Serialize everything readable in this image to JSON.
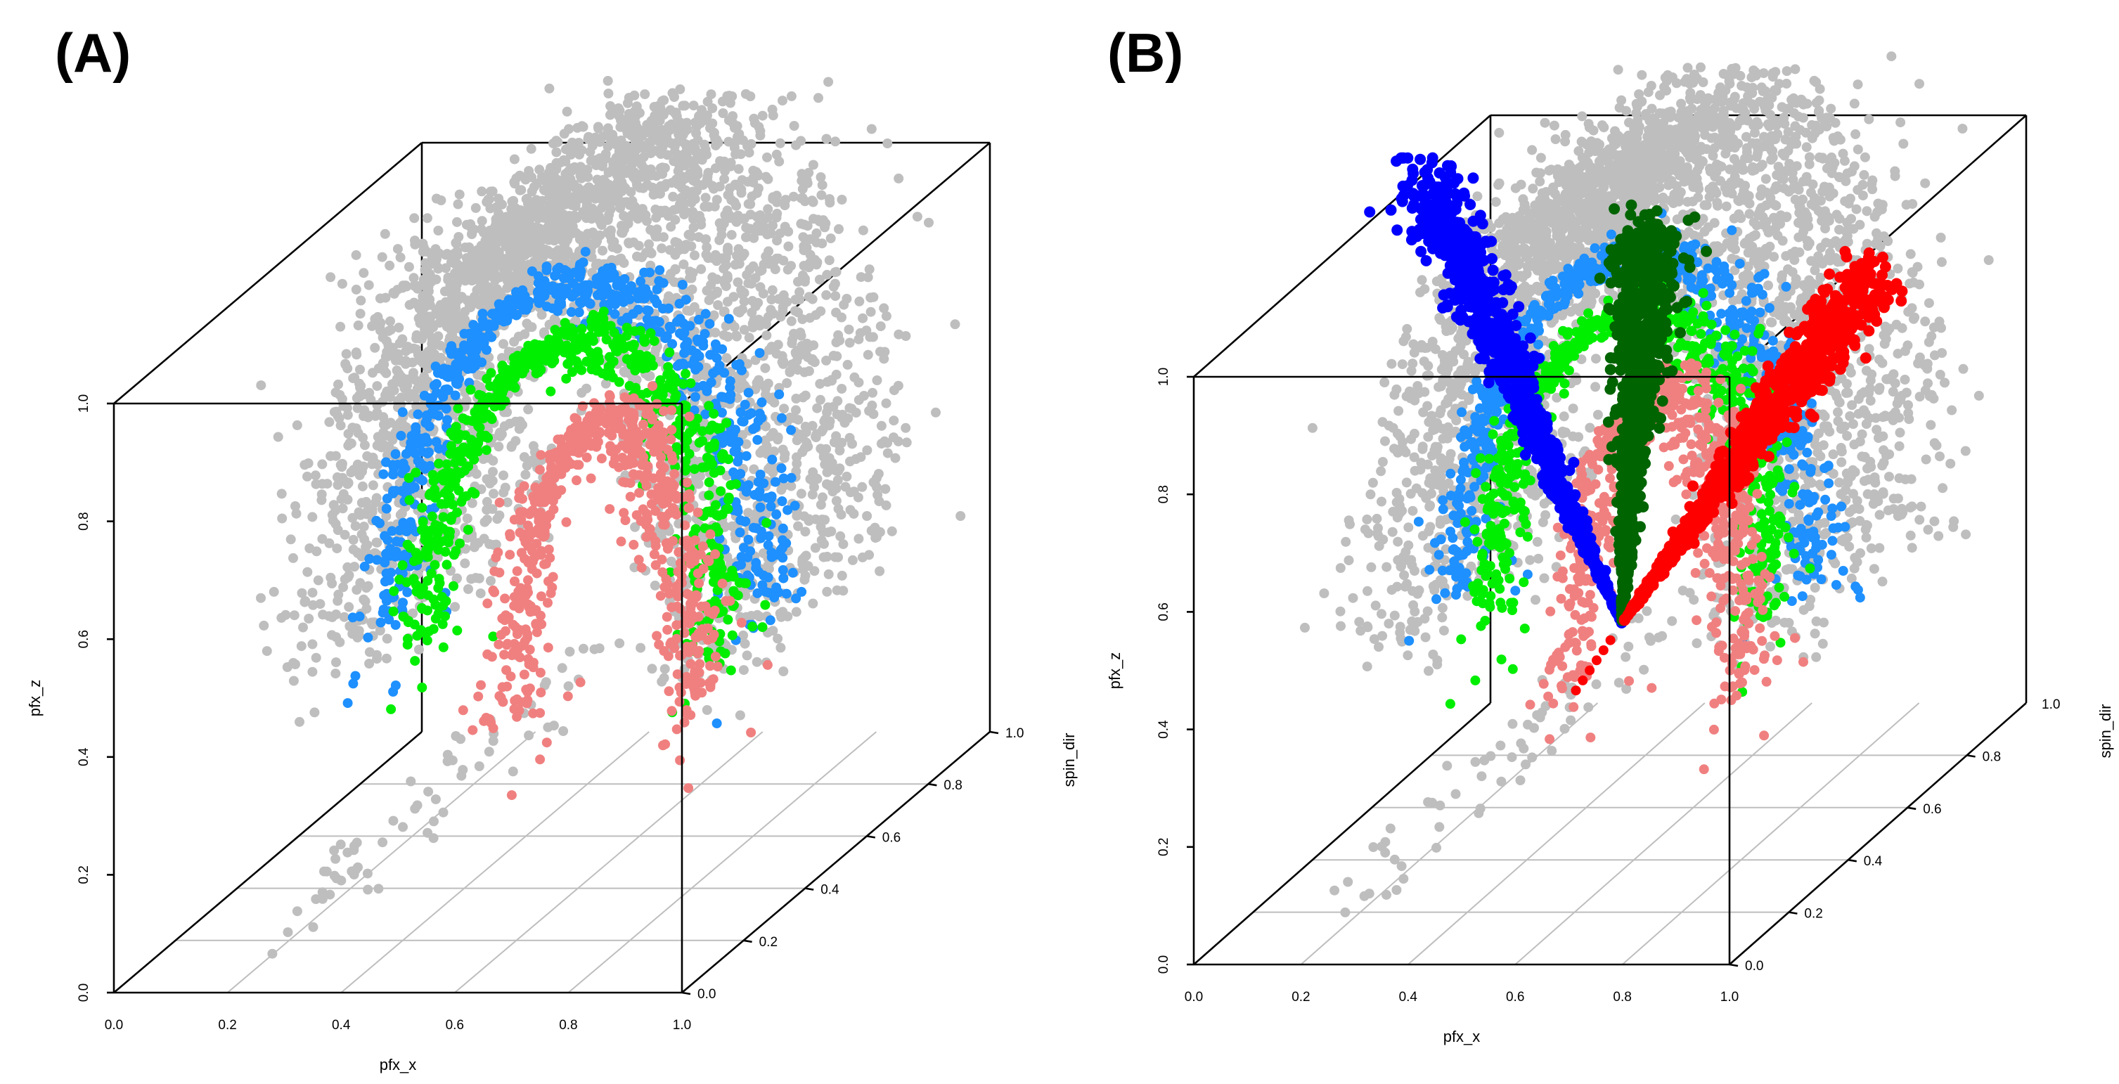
{
  "chart_data": [
    {
      "type": "scatter3d",
      "panel_label": "(A)",
      "xlabel": "pfx_x",
      "ylabel": "spin_dir",
      "zlabel": "pfx_z",
      "xlim": [
        0,
        1
      ],
      "ylim": [
        0,
        1
      ],
      "zlim": [
        0,
        1
      ],
      "x_ticks": [
        "0.0",
        "0.2",
        "0.4",
        "0.6",
        "0.8",
        "1.0"
      ],
      "y_ticks": [
        "0.0",
        "0.2",
        "0.4",
        "0.6",
        "0.8",
        "1.0"
      ],
      "z_ticks": [
        "0.0",
        "0.2",
        "0.4",
        "0.6",
        "0.8",
        "1.0"
      ],
      "grid": true,
      "colors": {
        "background_points": "#bebebe",
        "outer_arc": "#1e90ff",
        "middle_arc": "#00ee00",
        "inner_arc": "#f08080"
      },
      "series": [
        {
          "name": "all pitches",
          "color": "#bebebe",
          "shape": "horseshoe cloud",
          "x_center": 0.56,
          "y_range": [
            0.15,
            0.9
          ],
          "z_range": [
            0.15,
            1.12
          ],
          "approx_points": 3200
        },
        {
          "name": "outer arc",
          "color": "#1e90ff",
          "shape": "arc",
          "x_center": 0.55,
          "radius_x": 0.33,
          "z_top": 0.98,
          "z_bottom": 0.42,
          "y_mean": 0.5
        },
        {
          "name": "middle arc",
          "color": "#00ee00",
          "shape": "arc",
          "x_center": 0.55,
          "radius_x": 0.26,
          "z_top": 0.89,
          "z_bottom": 0.38,
          "y_mean": 0.48
        },
        {
          "name": "inner arc",
          "color": "#f08080",
          "shape": "arc",
          "x_center": 0.62,
          "radius_x": 0.16,
          "z_top": 0.77,
          "z_bottom": 0.27,
          "y_mean": 0.45
        }
      ]
    },
    {
      "type": "scatter3d",
      "panel_label": "(B)",
      "xlabel": "pfx_x",
      "ylabel": "spin_dir",
      "zlabel": "pfx_z",
      "xlim": [
        0,
        1
      ],
      "ylim": [
        0,
        1
      ],
      "zlim": [
        0,
        1
      ],
      "x_ticks": [
        "0.0",
        "0.2",
        "0.4",
        "0.6",
        "0.8",
        "1.0"
      ],
      "y_ticks": [
        "0.0",
        "0.2",
        "0.4",
        "0.6",
        "0.8"
      ],
      "y_axis_end_label": "1.0",
      "z_ticks": [
        "0.0",
        "0.2",
        "0.4",
        "0.6",
        "0.8",
        "1.0"
      ],
      "grid": true,
      "colors": {
        "background_points": "#bebebe",
        "outer_arc": "#1e90ff",
        "middle_arc": "#00ee00",
        "inner_arc": "#f08080",
        "fan_blue": "#0000ff",
        "fan_green": "#006400",
        "fan_red": "#ff0000"
      },
      "series": [
        {
          "name": "all pitches",
          "color": "#bebebe",
          "shape": "horseshoe cloud",
          "x_center": 0.56,
          "y_range": [
            0.15,
            0.9
          ],
          "z_range": [
            0.15,
            1.12
          ],
          "approx_points": 3200
        },
        {
          "name": "outer arc",
          "color": "#1e90ff",
          "shape": "arc",
          "x_center": 0.55,
          "radius_x": 0.33,
          "z_top": 0.98,
          "z_bottom": 0.42,
          "y_mean": 0.5
        },
        {
          "name": "middle arc",
          "color": "#00ee00",
          "shape": "arc",
          "x_center": 0.55,
          "radius_x": 0.26,
          "z_top": 0.89,
          "z_bottom": 0.38,
          "y_mean": 0.48
        },
        {
          "name": "inner arc",
          "color": "#f08080",
          "shape": "arc",
          "x_center": 0.62,
          "radius_x": 0.16,
          "z_top": 0.77,
          "z_bottom": 0.27,
          "y_mean": 0.45
        },
        {
          "name": "blue fan",
          "color": "#0000ff",
          "shape": "fan",
          "apex": [
            0.55,
            0.45,
            0.38
          ],
          "end": [
            0.15,
            0.5,
            1.12
          ]
        },
        {
          "name": "green fan",
          "color": "#006400",
          "shape": "fan",
          "apex": [
            0.55,
            0.45,
            0.38
          ],
          "end": [
            0.57,
            0.5,
            1.03
          ]
        },
        {
          "name": "red fan",
          "color": "#ff0000",
          "shape": "fan",
          "apex": [
            0.55,
            0.45,
            0.38
          ],
          "end": [
            0.98,
            0.5,
            0.95
          ]
        }
      ]
    }
  ]
}
